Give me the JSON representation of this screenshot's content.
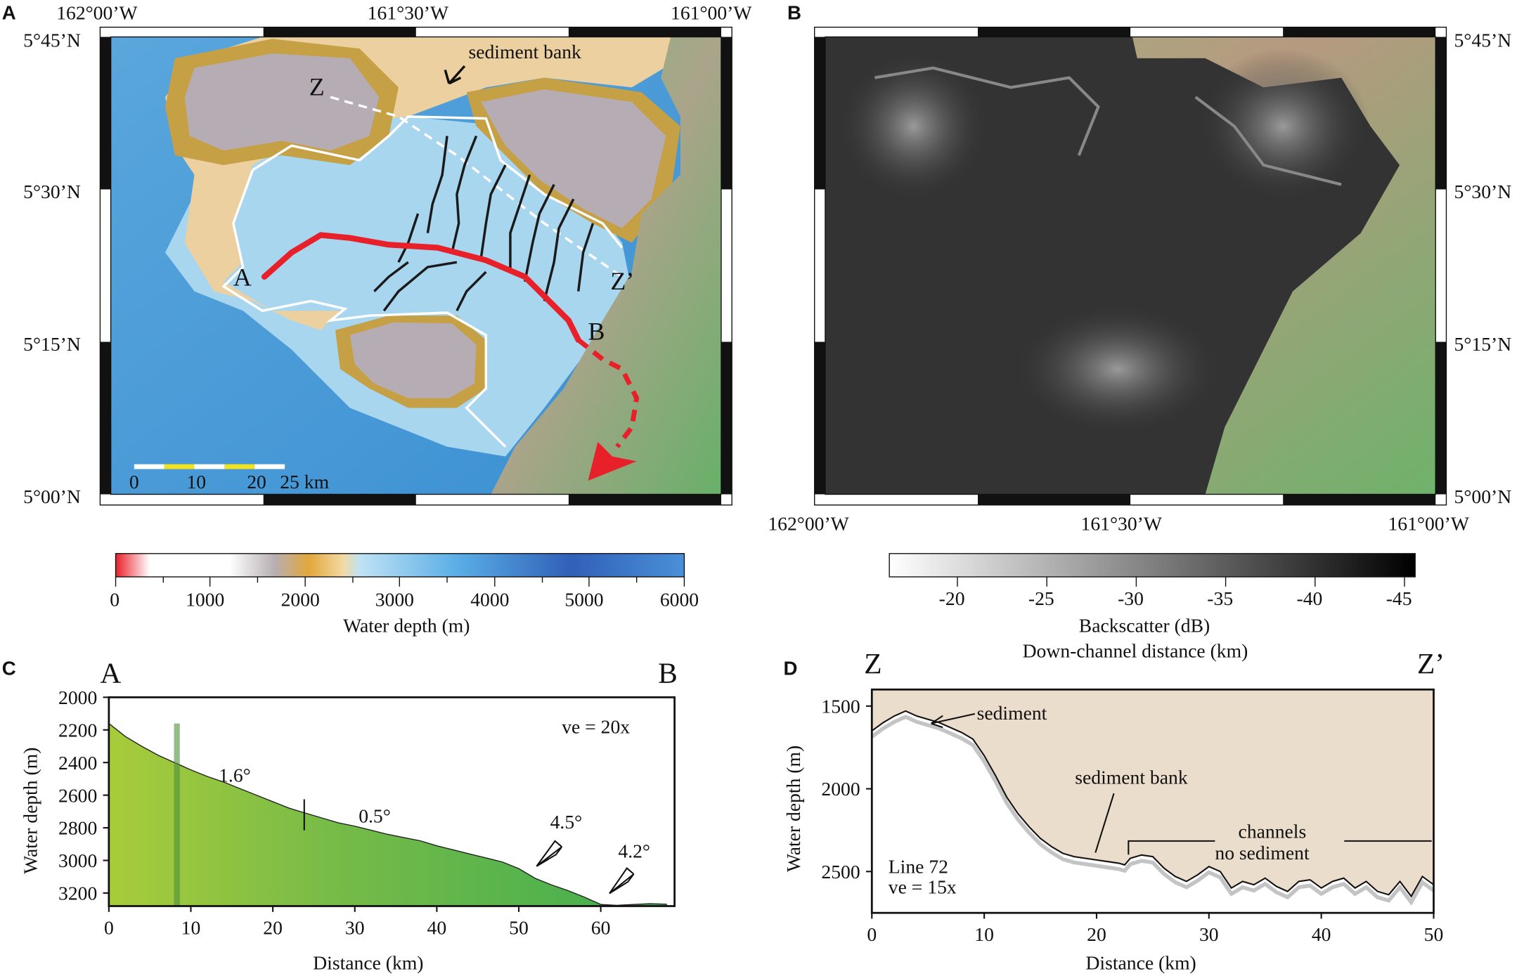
{
  "panels": {
    "a": {
      "letter": "A",
      "lon_labels": [
        "162°00’W",
        "161°30’W",
        "161°00’W"
      ],
      "lat_labels": [
        "5°45’N",
        "5°30’N",
        "5°15’N",
        "5°00’N"
      ],
      "annotations": {
        "sediment_bank": "sediment bank",
        "z": "Z",
        "z_prime": "Z’",
        "a": "A",
        "b": "B"
      },
      "scale_bar": [
        "0",
        "10",
        "20",
        "25 km"
      ],
      "colors": {
        "deep": "#3b8fd0",
        "shelf": "#e9c98e",
        "plateau": "#b9aeb4",
        "land": "#6fb26b",
        "track": "#e8202a"
      }
    },
    "b": {
      "letter": "B",
      "lon_labels": [
        "162°00’W",
        "161°30’W",
        "161°00’W"
      ],
      "lat_labels": [
        "5°45’N",
        "5°30’N",
        "5°15’N",
        "5°00’N"
      ]
    },
    "c": {
      "letter": "C",
      "endpoints": [
        "A",
        "B"
      ],
      "annotations": {
        "ve": "ve = 20x",
        "slope1": "1.6°",
        "slope2": "0.5°",
        "slope3": "4.5°",
        "slope4": "4.2°"
      }
    },
    "d": {
      "letter": "D",
      "endpoints": [
        "Z",
        "Z’"
      ],
      "annotations": {
        "sediment": "sediment",
        "sediment_bank": "sediment bank",
        "channels": "channels",
        "no_sediment": "no sediment",
        "line": "Line 72",
        "ve": "ve = 15x"
      }
    }
  },
  "colorbars": {
    "depth": {
      "label": "Water depth (m)",
      "ticks": [
        "0",
        "1000",
        "2000",
        "3000",
        "4000",
        "5000",
        "6000"
      ]
    },
    "backscatter": {
      "label": "Backscatter (dB)",
      "sublabel": "Down-channel distance (km)",
      "ticks": [
        "-20",
        "-25",
        "-30",
        "-35",
        "-40",
        "-45"
      ]
    }
  },
  "chart_data": [
    {
      "type": "area",
      "panel": "C",
      "xlabel": "Distance (km)",
      "ylabel": "Water depth (m)",
      "xlim": [
        0,
        69
      ],
      "ylim": [
        3280,
        2000
      ],
      "xticks": [
        0,
        10,
        20,
        30,
        40,
        50,
        60
      ],
      "yticks": [
        2000,
        2200,
        2400,
        2600,
        2800,
        3000,
        3200
      ],
      "x": [
        0,
        2,
        4,
        6,
        8,
        10,
        12,
        14,
        16,
        18,
        20,
        22,
        24,
        26,
        28,
        30,
        32,
        34,
        36,
        38,
        40,
        42,
        44,
        46,
        48,
        50,
        52,
        54,
        56,
        58,
        60,
        62,
        64,
        66,
        68
      ],
      "y": [
        2160,
        2240,
        2300,
        2355,
        2400,
        2445,
        2485,
        2520,
        2560,
        2600,
        2640,
        2680,
        2710,
        2740,
        2770,
        2790,
        2815,
        2840,
        2860,
        2880,
        2910,
        2935,
        2960,
        2985,
        3010,
        3050,
        3110,
        3150,
        3185,
        3225,
        3270,
        3275,
        3270,
        3265,
        3268
      ]
    },
    {
      "type": "area",
      "panel": "D",
      "xlabel": "Distance (km)",
      "ylabel": "Water depth (m)",
      "xlim": [
        0,
        50
      ],
      "ylim": [
        2750,
        1400
      ],
      "xticks": [
        0,
        10,
        20,
        30,
        40,
        50
      ],
      "yticks": [
        1500,
        2000,
        2500
      ],
      "x": [
        0,
        1,
        2,
        3,
        4,
        6,
        8,
        9,
        10,
        11,
        12,
        13,
        14,
        15,
        16,
        17,
        18,
        19,
        20,
        21,
        22,
        22.5,
        23,
        24,
        25,
        26,
        27,
        28,
        29,
        30,
        31,
        32,
        33,
        34,
        35,
        36,
        37,
        38,
        39,
        40,
        41,
        42,
        43,
        44,
        45,
        46,
        47,
        48,
        49,
        50
      ],
      "y": [
        1650,
        1600,
        1560,
        1530,
        1560,
        1600,
        1660,
        1700,
        1800,
        1920,
        2050,
        2150,
        2230,
        2300,
        2350,
        2390,
        2410,
        2420,
        2430,
        2440,
        2450,
        2460,
        2420,
        2400,
        2410,
        2480,
        2530,
        2560,
        2520,
        2470,
        2500,
        2600,
        2560,
        2580,
        2540,
        2590,
        2620,
        2560,
        2550,
        2600,
        2560,
        2540,
        2600,
        2560,
        2620,
        2640,
        2560,
        2650,
        2530,
        2580
      ]
    }
  ]
}
